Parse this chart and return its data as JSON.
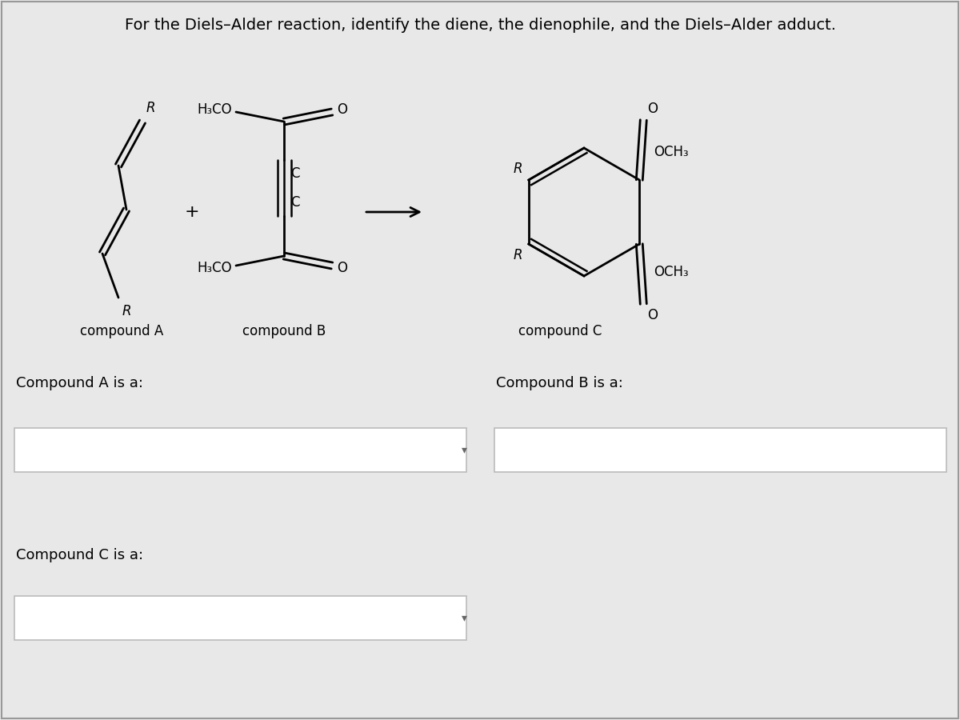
{
  "title": "For the Diels–Alder reaction, identify the diene, the dienophile, and the Diels–Alder adduct.",
  "background_color": "#e8e8e8",
  "text_color": "#000000",
  "compound_a_label": "compound A",
  "compound_b_label": "compound B",
  "compound_c_label": "compound C",
  "compound_a_is": "Compound A is a:",
  "compound_b_is": "Compound B is a:",
  "compound_c_is": "Compound C is a:",
  "plus_sign": "+",
  "box_color": "#ffffff",
  "box_edge_color": "#bbbbbb"
}
